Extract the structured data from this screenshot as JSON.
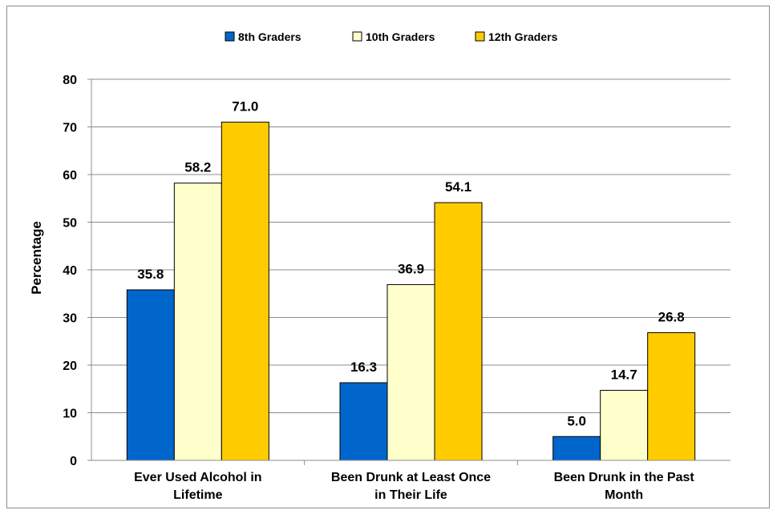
{
  "chart_data": {
    "type": "bar",
    "title": "",
    "xlabel": "",
    "ylabel": "Percentage",
    "ylim": [
      0,
      80
    ],
    "yticks": [
      0,
      10,
      20,
      30,
      40,
      50,
      60,
      70,
      80
    ],
    "grid": true,
    "legend_position": "top",
    "categories": [
      [
        "Ever Used Alcohol in",
        "Lifetime"
      ],
      [
        "Been Drunk at Least Once",
        "in Their Life"
      ],
      [
        "Been Drunk in the Past",
        "Month"
      ]
    ],
    "series": [
      {
        "name": "8th Graders",
        "color": "#0066cc",
        "values": [
          35.8,
          16.3,
          5.0
        ]
      },
      {
        "name": "10th Graders",
        "color": "#ffffcc",
        "values": [
          58.2,
          36.9,
          14.7
        ]
      },
      {
        "name": "12th Graders",
        "color": "#ffcc00",
        "values": [
          71.0,
          54.1,
          26.8
        ]
      }
    ]
  }
}
